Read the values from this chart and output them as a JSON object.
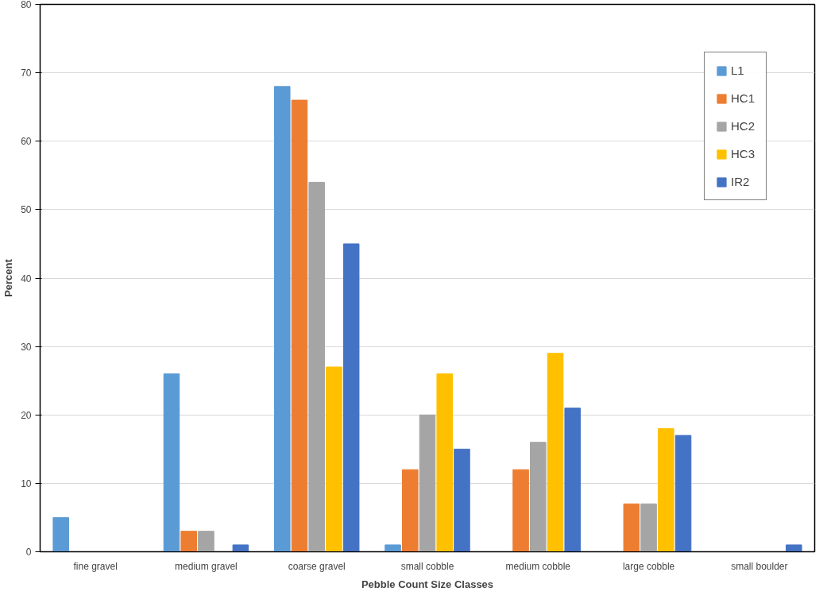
{
  "chart_data": {
    "type": "bar",
    "xlabel": "Pebble Count Size Classes",
    "ylabel": "Percent",
    "categories": [
      "fine gravel",
      "medium gravel",
      "coarse gravel",
      "small cobble",
      "medium cobble",
      "large cobble",
      "small boulder"
    ],
    "series": [
      {
        "name": "L1",
        "color": "#5b9bd5",
        "values": [
          5,
          26,
          68,
          1,
          0,
          0,
          0
        ]
      },
      {
        "name": "HC1",
        "color": "#ed7d31",
        "values": [
          0,
          3,
          66,
          12,
          12,
          7,
          0
        ]
      },
      {
        "name": "HC2",
        "color": "#a5a5a5",
        "values": [
          0,
          3,
          54,
          20,
          16,
          7,
          0
        ]
      },
      {
        "name": "HC3",
        "color": "#ffc000",
        "values": [
          0,
          0,
          27,
          26,
          29,
          18,
          0
        ]
      },
      {
        "name": "IR2",
        "color": "#4472c4",
        "values": [
          0,
          1,
          45,
          15,
          21,
          17,
          1
        ]
      }
    ],
    "ylim": [
      0,
      80
    ],
    "yticks": [
      0,
      10,
      20,
      30,
      40,
      50,
      60,
      70,
      80
    ],
    "grid": "y",
    "legend": "top right"
  }
}
